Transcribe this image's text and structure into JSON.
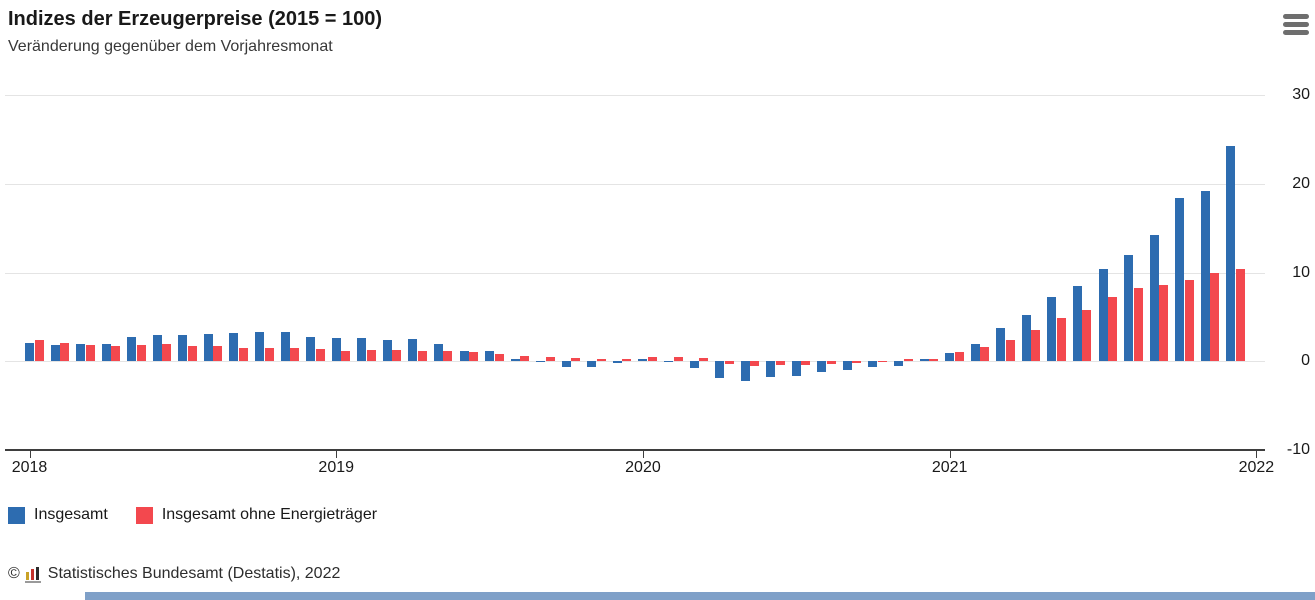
{
  "header": {
    "title": "Indizes der Erzeugerpreise (2015 = 100)",
    "subtitle": "Veränderung gegenüber dem Vorjahresmonat"
  },
  "menu": {
    "icon": "hamburger-icon"
  },
  "chart_data": {
    "type": "bar",
    "x": [
      "2018-01",
      "2018-02",
      "2018-03",
      "2018-04",
      "2018-05",
      "2018-06",
      "2018-07",
      "2018-08",
      "2018-09",
      "2018-10",
      "2018-11",
      "2018-12",
      "2019-01",
      "2019-02",
      "2019-03",
      "2019-04",
      "2019-05",
      "2019-06",
      "2019-07",
      "2019-08",
      "2019-09",
      "2019-10",
      "2019-11",
      "2019-12",
      "2020-01",
      "2020-02",
      "2020-03",
      "2020-04",
      "2020-05",
      "2020-06",
      "2020-07",
      "2020-08",
      "2020-09",
      "2020-10",
      "2020-11",
      "2020-12",
      "2021-01",
      "2021-02",
      "2021-03",
      "2021-04",
      "2021-05",
      "2021-06",
      "2021-07",
      "2021-08",
      "2021-09",
      "2021-10",
      "2021-11",
      "2021-12"
    ],
    "series": [
      {
        "name": "Insgesamt",
        "color": "#2d6cb0",
        "values": [
          2.1,
          1.8,
          1.9,
          2.0,
          2.7,
          3.0,
          3.0,
          3.1,
          3.2,
          3.3,
          3.3,
          2.7,
          2.6,
          2.6,
          2.4,
          2.5,
          1.9,
          1.2,
          1.1,
          0.3,
          -0.1,
          -0.6,
          -0.7,
          -0.2,
          0.2,
          -0.1,
          -0.8,
          -1.9,
          -2.2,
          -1.8,
          -1.7,
          -1.2,
          -1.0,
          -0.7,
          -0.5,
          0.2,
          0.9,
          1.9,
          3.7,
          5.2,
          7.2,
          8.5,
          10.4,
          12.0,
          14.2,
          18.4,
          19.2,
          24.2
        ]
      },
      {
        "name": "Insgesamt ohne Energieträger",
        "color": "#f3484e",
        "values": [
          2.4,
          2.1,
          1.8,
          1.7,
          1.8,
          1.9,
          1.7,
          1.7,
          1.5,
          1.5,
          1.5,
          1.4,
          1.2,
          1.3,
          1.3,
          1.2,
          1.1,
          1.0,
          0.8,
          0.6,
          0.5,
          0.4,
          0.3,
          0.3,
          0.5,
          0.5,
          0.4,
          -0.3,
          -0.5,
          -0.4,
          -0.4,
          -0.3,
          -0.2,
          -0.1,
          0.2,
          0.3,
          1.0,
          1.6,
          2.4,
          3.5,
          4.9,
          5.8,
          7.2,
          8.3,
          8.6,
          9.2,
          9.9,
          10.4
        ]
      }
    ],
    "title": "Indizes der Erzeugerpreise (2015 = 100)",
    "subtitle": "Veränderung gegenüber dem Vorjahresmonat",
    "xlabel": "",
    "ylabel": "",
    "ylim": [
      -10,
      30
    ],
    "yticks": [
      30,
      20,
      10,
      0,
      -10
    ],
    "ytick_labels": [
      "30",
      "20",
      "10",
      "0",
      "-10"
    ],
    "year_labels": [
      "2018",
      "2019",
      "2020",
      "2021",
      "2022"
    ],
    "grid": "horizontal-only",
    "legend_position": "bottom-left"
  },
  "legend": {
    "items": [
      {
        "label": "Insgesamt",
        "color": "#2d6cb0"
      },
      {
        "label": "Insgesamt ohne Energieträger",
        "color": "#f3484e"
      }
    ]
  },
  "footer": {
    "copyright": "©",
    "logo": "destatis-logo",
    "source": "Statistisches Bundesamt (Destatis), 2022"
  }
}
